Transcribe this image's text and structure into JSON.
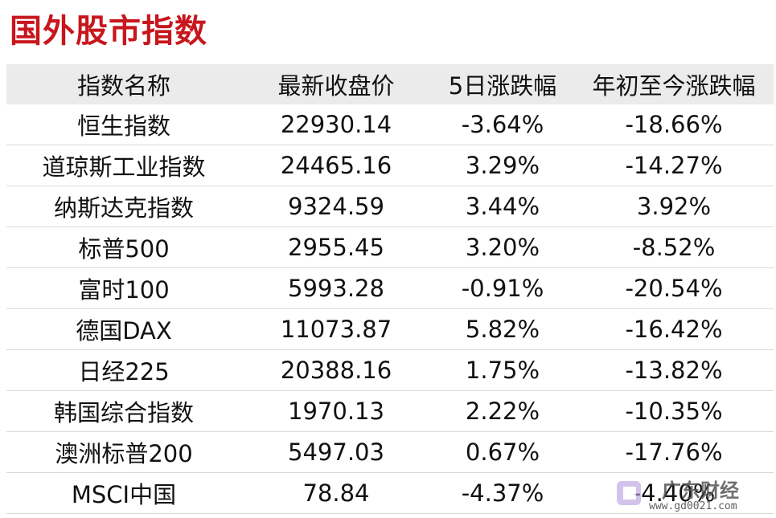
{
  "header": {
    "title": "国外股市指数"
  },
  "table": {
    "columns": [
      "指数名称",
      "最新收盘价",
      "5日涨跌幅",
      "年初至今涨跌幅"
    ],
    "rows": [
      [
        "恒生指数",
        "22930.14",
        "-3.64%",
        "-18.66%"
      ],
      [
        "道琼斯工业指数",
        "24465.16",
        "3.29%",
        "-14.27%"
      ],
      [
        "纳斯达克指数",
        "9324.59",
        "3.44%",
        "3.92%"
      ],
      [
        "标普500",
        "2955.45",
        "3.20%",
        "-8.52%"
      ],
      [
        "富时100",
        "5993.28",
        "-0.91%",
        "-20.54%"
      ],
      [
        "德国DAX",
        "11073.87",
        "5.82%",
        "-16.42%"
      ],
      [
        "日经225",
        "20388.16",
        "1.75%",
        "-13.82%"
      ],
      [
        "韩国综合指数",
        "1970.13",
        "2.22%",
        "-10.35%"
      ],
      [
        "澳洲标普200",
        "5497.03",
        "0.67%",
        "-17.76%"
      ],
      [
        "MSCI中国",
        "78.84",
        "-4.37%",
        "-4.40%"
      ]
    ]
  },
  "watermark": {
    "name": "广东财经",
    "url": "www.gd0021.com"
  }
}
